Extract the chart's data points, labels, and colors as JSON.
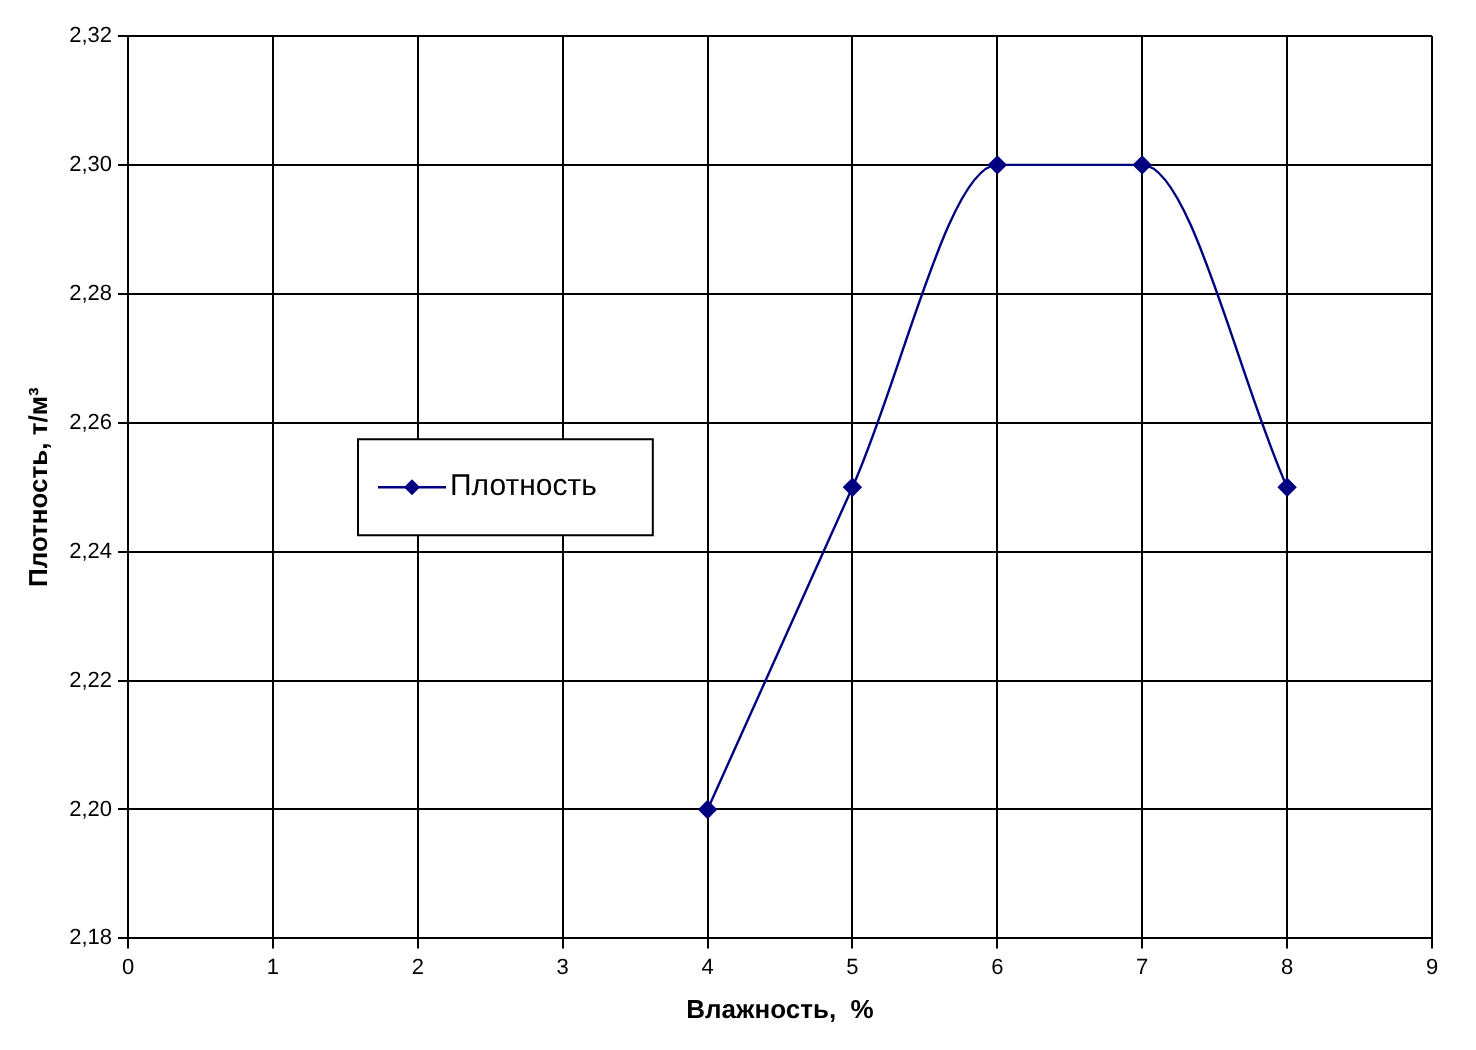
{
  "chart_data": {
    "type": "line",
    "xlabel": "Влажность,  %",
    "ylabel": "Плотность, т/м³",
    "series": [
      {
        "name": "Плотность",
        "color": "#000080",
        "x": [
          4,
          5,
          6,
          7,
          8
        ],
        "values": [
          2.2,
          2.25,
          2.3,
          2.3,
          2.25
        ]
      }
    ],
    "xlim": [
      0,
      9
    ],
    "xticks": [
      0,
      1,
      2,
      3,
      4,
      5,
      6,
      7,
      8,
      9
    ],
    "ylim": [
      2.18,
      2.32
    ],
    "yticks": [
      {
        "value": 2.18,
        "label": "2,18"
      },
      {
        "value": 2.2,
        "label": "2,20"
      },
      {
        "value": 2.22,
        "label": "2,22"
      },
      {
        "value": 2.24,
        "label": "2,24"
      },
      {
        "value": 2.26,
        "label": "2,26"
      },
      {
        "value": 2.28,
        "label": "2,28"
      },
      {
        "value": 2.3,
        "label": "2,30"
      },
      {
        "value": 2.32,
        "label": "2,32"
      }
    ],
    "grid": true,
    "legend": "left",
    "marker": "diamond",
    "line_style": "solid"
  }
}
